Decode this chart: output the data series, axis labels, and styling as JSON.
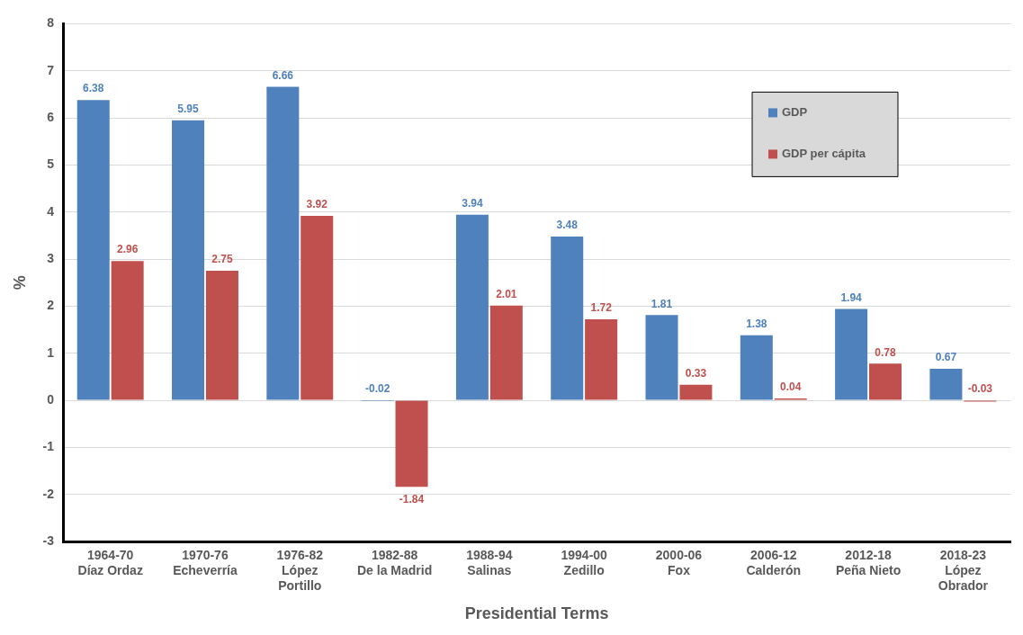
{
  "chart_data": {
    "type": "bar",
    "xlabel": "Presidential Terms",
    "ylabel": "%",
    "categories": [
      "1964-70\nDíaz Ordaz",
      "1970-76\nEcheverría",
      "1976-82\nLópez\nPortillo",
      "1982-88\nDe la Madrid",
      "1988-94\nSalinas",
      "1994-00\nZedillo",
      "2000-06\nFox",
      "2006-12\nCalderón",
      "2012-18\nPeña Nieto",
      "2018-23\nLópez\nObrador"
    ],
    "series": [
      {
        "name": "GDP",
        "color": "#4f81bd",
        "values": [
          6.38,
          5.95,
          6.66,
          -0.02,
          3.94,
          3.48,
          1.81,
          1.38,
          1.94,
          0.67
        ]
      },
      {
        "name": "GDP per cápita",
        "color": "#c0504d",
        "values": [
          2.96,
          2.75,
          3.92,
          -1.84,
          2.01,
          1.72,
          0.33,
          0.04,
          0.78,
          -0.03
        ]
      }
    ],
    "ylim": [
      -3,
      8
    ],
    "yticks": [
      -3,
      -2,
      -1,
      0,
      1,
      2,
      3,
      4,
      5,
      6,
      7,
      8
    ],
    "grid": "y",
    "legend": "top right",
    "data_labels": true
  }
}
